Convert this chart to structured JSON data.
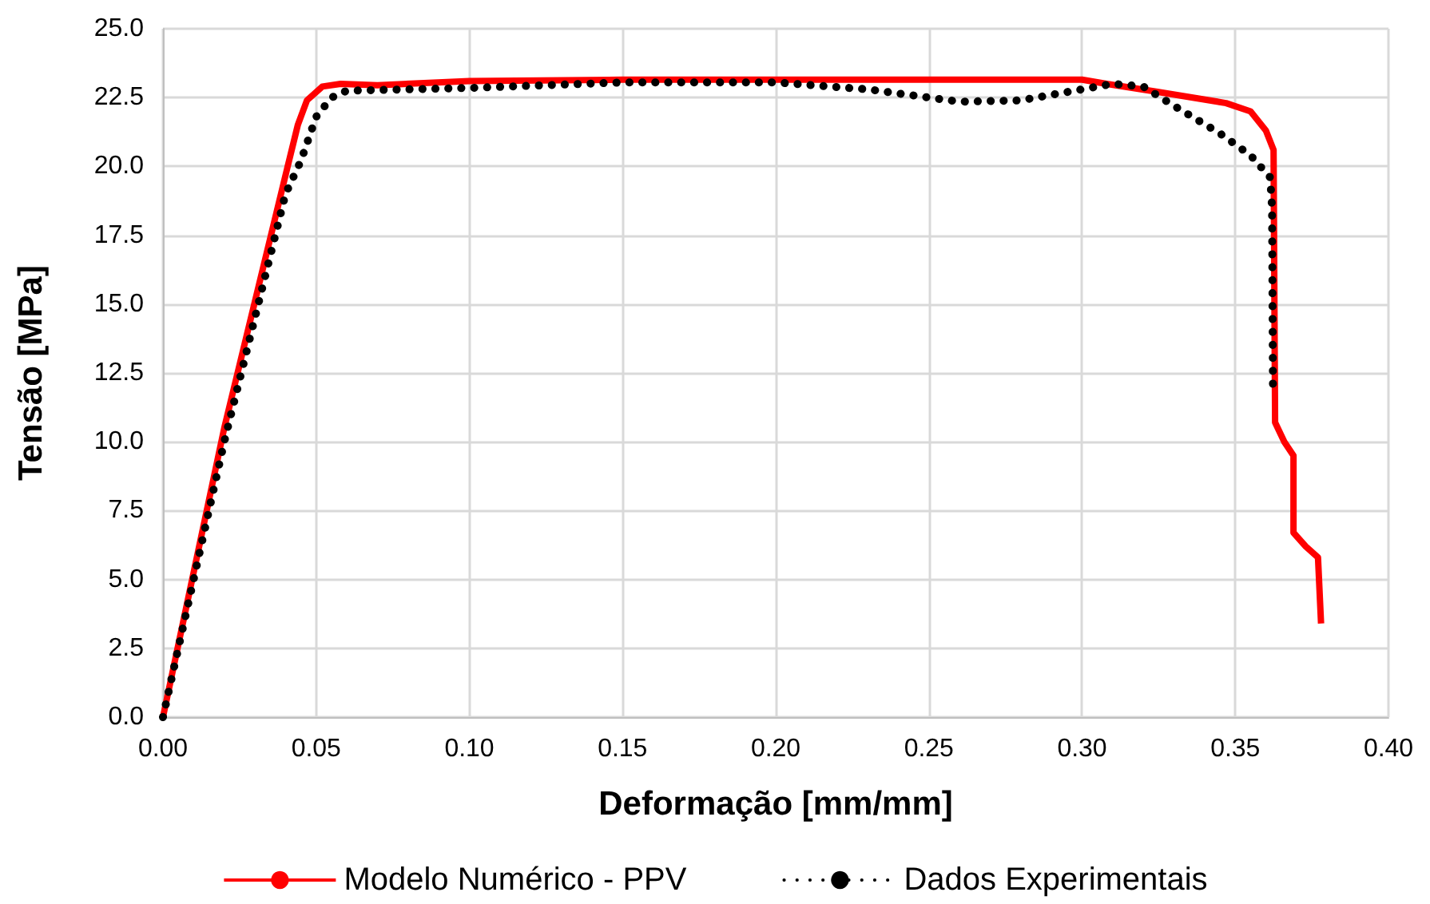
{
  "chart_data": {
    "type": "line",
    "xlabel": "Deformação [mm/mm]",
    "ylabel": "Tensão [MPa]",
    "xlim": [
      0,
      0.4
    ],
    "xticks": [
      {
        "value": 0,
        "label": "0.00"
      },
      {
        "value": 0.05,
        "label": "0.05"
      },
      {
        "value": 0.1,
        "label": "0.10"
      },
      {
        "value": 0.15,
        "label": "0.15"
      },
      {
        "value": 0.2,
        "label": "0.20"
      },
      {
        "value": 0.25,
        "label": "0.25"
      },
      {
        "value": 0.3,
        "label": "0.30"
      },
      {
        "value": 0.35,
        "label": "0.35"
      },
      {
        "value": 0.4,
        "label": "0.40"
      }
    ],
    "ylim": [
      0,
      25
    ],
    "yticks": [
      {
        "value": 0,
        "label": "0.0"
      },
      {
        "value": 2.5,
        "label": "2.5"
      },
      {
        "value": 5,
        "label": "5.0"
      },
      {
        "value": 7.5,
        "label": "7.5"
      },
      {
        "value": 10,
        "label": "10.0"
      },
      {
        "value": 12.5,
        "label": "12.5"
      },
      {
        "value": 15,
        "label": "15.0"
      },
      {
        "value": 17.5,
        "label": "17.5"
      },
      {
        "value": 20,
        "label": "20.0"
      },
      {
        "value": 22.5,
        "label": "22.5"
      },
      {
        "value": 25,
        "label": "25.0"
      }
    ],
    "grid": true,
    "legend": "bottom",
    "marker": "none",
    "series": [
      {
        "name": "Modelo Numérico - PPV",
        "color": "#ff0000",
        "line_style": "solid",
        "x": [
          0,
          0.02,
          0.0407,
          0.044,
          0.047,
          0.052,
          0.058,
          0.07,
          0.1,
          0.15,
          0.2,
          0.25,
          0.3,
          0.308,
          0.325,
          0.347,
          0.355,
          0.36,
          0.3625,
          0.363,
          0.366,
          0.369,
          0.369,
          0.373,
          0.377,
          0.378
        ],
        "values": [
          0,
          10.5,
          20.0,
          21.5,
          22.4,
          22.9,
          23.0,
          22.95,
          23.1,
          23.15,
          23.15,
          23.15,
          23.15,
          23.0,
          22.7,
          22.3,
          22.0,
          21.3,
          20.6,
          10.7,
          10.0,
          9.5,
          6.7,
          6.2,
          5.8,
          3.4
        ]
      },
      {
        "name": "Dados Experimentais",
        "color": "#000000",
        "line_style": "dotted",
        "x": [
          0,
          0.02,
          0.04,
          0.045,
          0.05,
          0.055,
          0.06,
          0.1,
          0.15,
          0.2,
          0.23,
          0.26,
          0.28,
          0.3,
          0.31,
          0.32,
          0.33,
          0.345,
          0.355,
          0.3614,
          0.362,
          0.3623
        ],
        "values": [
          0,
          10.0,
          19.0,
          20.2,
          21.8,
          22.5,
          22.75,
          22.85,
          23.05,
          23.05,
          22.8,
          22.35,
          22.4,
          22.8,
          23.0,
          22.9,
          22.2,
          21.2,
          20.4,
          19.6,
          18.5,
          11.9
        ]
      }
    ]
  }
}
